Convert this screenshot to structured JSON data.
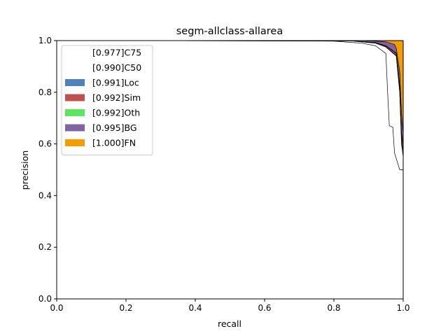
{
  "chart_data": {
    "type": "area",
    "title": "segm-allclass-allarea",
    "xlabel": "recall",
    "ylabel": "precision",
    "xlim": [
      0,
      1
    ],
    "ylim": [
      0,
      1
    ],
    "xticks": [
      "0.0",
      "0.2",
      "0.4",
      "0.6",
      "0.8",
      "1.0"
    ],
    "yticks": [
      "0.0",
      "0.2",
      "0.4",
      "0.6",
      "0.8",
      "1.0"
    ],
    "grid": false,
    "legend_position": "top-left",
    "series": [
      {
        "name": "[0.977]C75",
        "color": "#ffffff",
        "points": [
          [
            0,
            1.0
          ],
          [
            0.43,
            1.0
          ],
          [
            0.8,
            0.998
          ],
          [
            0.88,
            0.99
          ],
          [
            0.92,
            0.98
          ],
          [
            0.95,
            0.95
          ],
          [
            0.955,
            0.8
          ],
          [
            0.96,
            0.67
          ],
          [
            0.97,
            0.665
          ],
          [
            0.975,
            0.565
          ],
          [
            0.99,
            0.5
          ],
          [
            1.0,
            0.5
          ]
        ]
      },
      {
        "name": "[0.990]C50",
        "color": "#ffffff",
        "points": [
          [
            0,
            1.0
          ],
          [
            0.85,
            0.999
          ],
          [
            0.92,
            0.99
          ],
          [
            0.95,
            0.975
          ],
          [
            0.98,
            0.94
          ],
          [
            0.99,
            0.8
          ],
          [
            0.995,
            0.6
          ],
          [
            1.0,
            0.55
          ]
        ]
      },
      {
        "name": "[0.991]Loc",
        "color": "#4f81bd",
        "points": [
          [
            0,
            1.0
          ],
          [
            0.85,
            0.999
          ],
          [
            0.92,
            0.99
          ],
          [
            0.95,
            0.976
          ],
          [
            0.98,
            0.942
          ],
          [
            0.99,
            0.8
          ],
          [
            0.995,
            0.62
          ],
          [
            1.0,
            0.57
          ]
        ]
      },
      {
        "name": "[0.992]Sim",
        "color": "#c0504d",
        "points": [
          [
            0,
            1.0
          ],
          [
            0.85,
            0.999
          ],
          [
            0.92,
            0.992
          ],
          [
            0.95,
            0.98
          ],
          [
            0.98,
            0.95
          ],
          [
            0.99,
            0.82
          ],
          [
            0.995,
            0.64
          ],
          [
            1.0,
            0.6
          ]
        ]
      },
      {
        "name": "[0.992]Oth",
        "color": "#5ee55e",
        "points": [
          [
            0,
            1.0
          ],
          [
            0.85,
            0.999
          ],
          [
            0.92,
            0.992
          ],
          [
            0.95,
            0.98
          ],
          [
            0.98,
            0.952
          ],
          [
            0.99,
            0.822
          ],
          [
            0.995,
            0.642
          ],
          [
            1.0,
            0.602
          ]
        ]
      },
      {
        "name": "[0.995]BG",
        "color": "#8064a2",
        "points": [
          [
            0,
            1.0
          ],
          [
            0.88,
            1.0
          ],
          [
            0.92,
            0.998
          ],
          [
            0.95,
            0.995
          ],
          [
            0.975,
            0.985
          ],
          [
            0.98,
            0.97
          ],
          [
            0.99,
            0.88
          ],
          [
            0.995,
            0.72
          ],
          [
            1.0,
            0.64
          ]
        ]
      },
      {
        "name": "[1.000]FN",
        "color": "#f79c00",
        "points": [
          [
            0,
            1.0
          ],
          [
            1.0,
            1.0
          ]
        ]
      }
    ]
  }
}
